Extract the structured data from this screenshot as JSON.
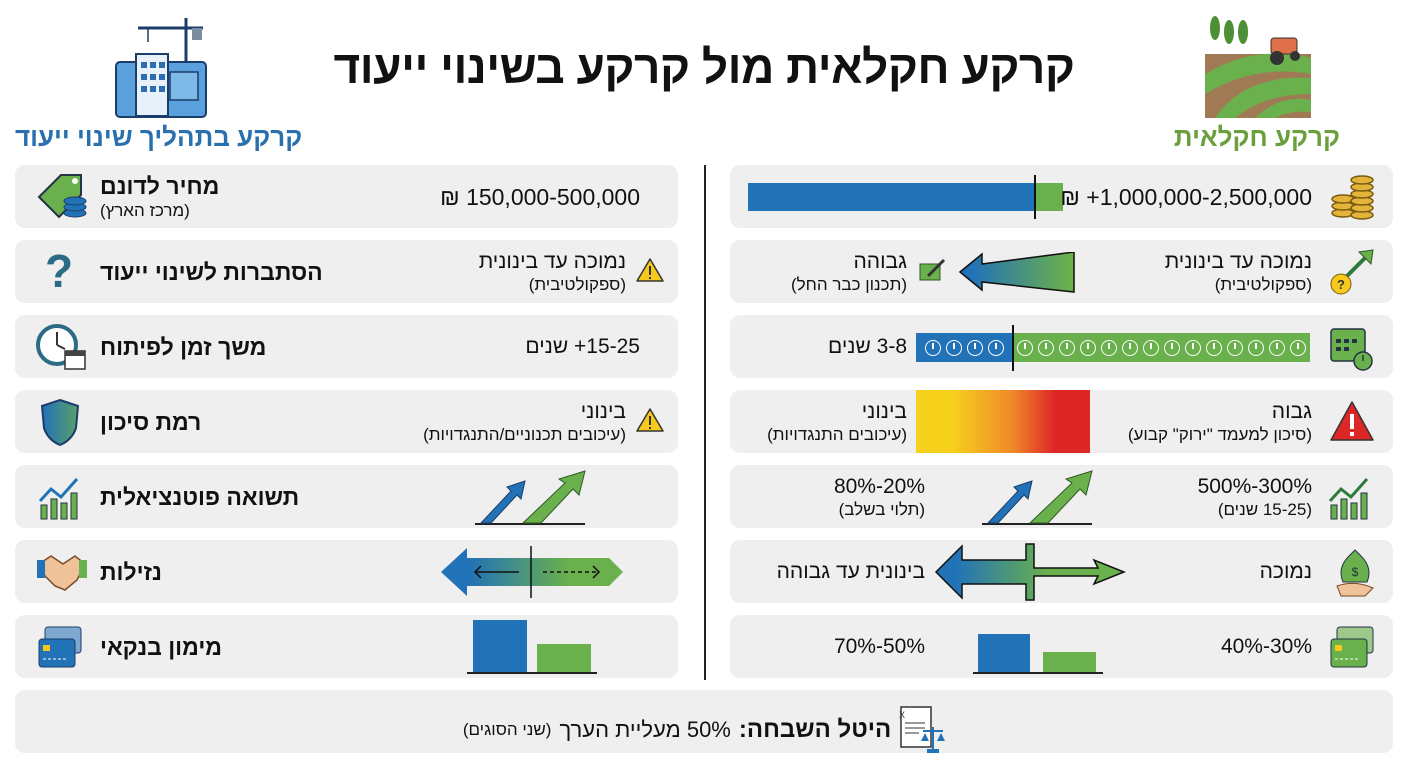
{
  "title": "קרקע חקלאית מול קרקע בשינוי ייעוד",
  "colors": {
    "blue": "#2272b8",
    "green": "#6ab04c",
    "row_bg": "#efefef",
    "header_blue": "#2a6fae",
    "header_green": "#6a9f3c",
    "risk_yellow": "#f6d21c",
    "risk_red": "#dd2727"
  },
  "headers": {
    "rezoning": "קרקע בתהליך שינוי ייעוד",
    "agricultural": "קרקע חקלאית"
  },
  "rows": [
    {
      "label": "מחיר לדונם",
      "sublabel": "(מרכז הארץ)",
      "icon": "price-tag-coins-icon",
      "rezoning": {
        "value": "150,000-500,000 ₪"
      },
      "agricultural": {
        "value": "1,000,000-2,500,000+ ₪",
        "icon": "coin-stacks-icon"
      }
    },
    {
      "label": "הסתברות לשינוי ייעוד",
      "icon": "question-mark-icon",
      "rezoning": {
        "value": "נמוכה עד בינונית",
        "sub": "(ספקולטיבית)",
        "icon": "warning-icon"
      },
      "agricultural": {
        "value": "נמוכה עד בינונית",
        "sub": "(ספקולטיבית)",
        "icon": "question-arrow-up-icon",
        "target_value": "גבוהה",
        "target_sub": "(תכנון כבר החל)",
        "target_icon": "planning-pencil-icon"
      }
    },
    {
      "label": "משך זמן לפיתוח",
      "icon": "clock-calendar-icon",
      "rezoning": {
        "value": "15-25+ שנים"
      },
      "agricultural": {
        "value": "3-8 שנים",
        "icon": "calendar-clock-icon"
      }
    },
    {
      "label": "רמת סיכון",
      "icon": "shield-icon",
      "rezoning": {
        "value": "בינוני",
        "sub": "(עיכובים תכנוניים/התנגדויות)",
        "icon": "warning-icon"
      },
      "agricultural": {
        "value": "גבוה",
        "sub": "(סיכון למעמד \"ירוק\" קבוע)",
        "icon": "red-warning-icon",
        "target_value": "בינוני",
        "target_sub": "(עיכובים התנגדויות)"
      }
    },
    {
      "label": "תשואה פוטנציאלית",
      "icon": "growth-chart-icon",
      "rezoning": {
        "visual": "two-rising-arrows"
      },
      "agricultural": {
        "value": "300%-500%",
        "sub": "(15-25 שנים)",
        "icon": "growth-chart-icon",
        "target_value": "20%-80%",
        "target_sub": "(תלוי בשלב)"
      }
    },
    {
      "label": "נזילות",
      "icon": "handshake-icon",
      "rezoning": {
        "visual": "double-arrow"
      },
      "agricultural": {
        "value": "נמוכה",
        "icon": "money-bag-hand-icon",
        "target_value": "בינונית עד גבוהה"
      }
    },
    {
      "label": "מימון בנקאי",
      "icon": "credit-card-icon",
      "rezoning": {
        "visual": "two-bars"
      },
      "agricultural": {
        "value": "30%-40%",
        "icon": "green-credit-card-icon",
        "target_value": "50%-70%"
      }
    }
  ],
  "footer": {
    "label": "היטל השבחה:",
    "text": "50% מעליית הערך",
    "note": "(שני הסוגים)",
    "icon": "tax-document-scales-icon"
  }
}
